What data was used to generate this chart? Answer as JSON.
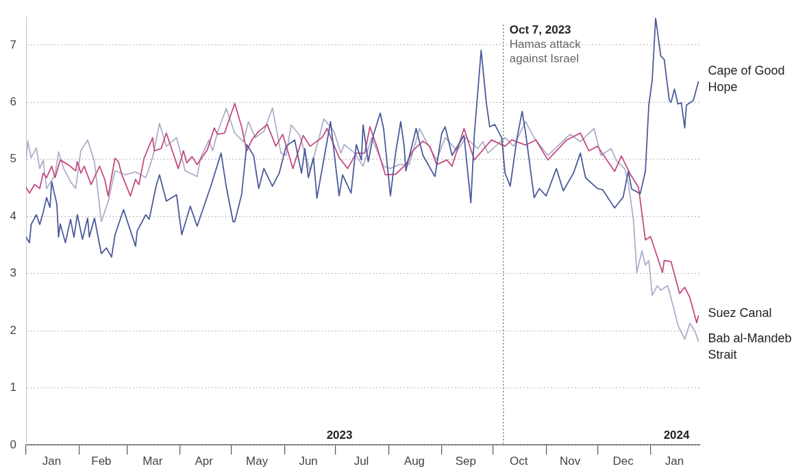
{
  "chart_data": {
    "type": "line",
    "xlim": [
      "2023-01-01",
      "2024-01-30"
    ],
    "xticks": [
      {
        "value": "2023-01-01",
        "label": null
      },
      {
        "value": "2023-01-16",
        "label": "Jan"
      },
      {
        "value": "2023-02-01",
        "label": null
      },
      {
        "value": "2023-02-14",
        "label": "Feb"
      },
      {
        "value": "2023-03-01",
        "label": null
      },
      {
        "value": "2023-03-16",
        "label": "Mar"
      },
      {
        "value": "2023-04-01",
        "label": null
      },
      {
        "value": "2023-04-15",
        "label": "Apr"
      },
      {
        "value": "2023-05-01",
        "label": null
      },
      {
        "value": "2023-05-16",
        "label": "May"
      },
      {
        "value": "2023-06-01",
        "label": null
      },
      {
        "value": "2023-06-15",
        "label": "Jun"
      },
      {
        "value": "2023-07-01",
        "label": null
      },
      {
        "value": "2023-07-16",
        "label": "Jul"
      },
      {
        "value": "2023-08-01",
        "label": null
      },
      {
        "value": "2023-08-16",
        "label": "Aug"
      },
      {
        "value": "2023-09-01",
        "label": null
      },
      {
        "value": "2023-09-15",
        "label": "Sep"
      },
      {
        "value": "2023-10-01",
        "label": null
      },
      {
        "value": "2023-10-16",
        "label": "Oct"
      },
      {
        "value": "2023-11-01",
        "label": null
      },
      {
        "value": "2023-11-15",
        "label": "Nov"
      },
      {
        "value": "2023-12-01",
        "label": null
      },
      {
        "value": "2023-12-16",
        "label": "Dec"
      },
      {
        "value": "2024-01-01",
        "label": null
      },
      {
        "value": "2024-01-15",
        "label": "Jan"
      }
    ],
    "ylim": [
      0,
      7.5
    ],
    "yticks": [
      0,
      1,
      2,
      3,
      4,
      5,
      6,
      7
    ],
    "grid": "y",
    "legend": false,
    "marker": "none",
    "line_style": "solid",
    "ref_lines": [
      {
        "axis": "x",
        "value": "2023-10-07",
        "label": "Oct 7, 2023\nHamas attack\nagainst Israel",
        "color": "#555555",
        "line_style": "dotted"
      }
    ],
    "annotations": [
      "2023",
      "2024"
    ],
    "series": [
      {
        "name": "Cape of Good Hope",
        "color": "#4a5a9a",
        "x": [
          "2023-01-01",
          "2023-01-03",
          "2023-01-04",
          "2023-01-07",
          "2023-01-09",
          "2023-01-11",
          "2023-01-13",
          "2023-01-15",
          "2023-01-16",
          "2023-01-19",
          "2023-01-20",
          "2023-01-21",
          "2023-01-24",
          "2023-01-27",
          "2023-01-29",
          "2023-01-31",
          "2023-02-03",
          "2023-02-06",
          "2023-02-07",
          "2023-02-10",
          "2023-02-14",
          "2023-02-17",
          "2023-02-20",
          "2023-02-22",
          "2023-02-27",
          "2023-03-06",
          "2023-03-07",
          "2023-03-12",
          "2023-03-14",
          "2023-03-18",
          "2023-03-20",
          "2023-03-24",
          "2023-03-30",
          "2023-04-02",
          "2023-04-07",
          "2023-04-11",
          "2023-04-19",
          "2023-04-25",
          "2023-04-28",
          "2023-05-02",
          "2023-05-03",
          "2023-05-07",
          "2023-05-10",
          "2023-05-14",
          "2023-05-17",
          "2023-05-20",
          "2023-05-25",
          "2023-05-29",
          "2023-06-02",
          "2023-06-07",
          "2023-06-11",
          "2023-06-13",
          "2023-06-15",
          "2023-06-18",
          "2023-06-20",
          "2023-06-28",
          "2023-07-03",
          "2023-07-05",
          "2023-07-10",
          "2023-07-13",
          "2023-07-16",
          "2023-07-17",
          "2023-07-20",
          "2023-07-23",
          "2023-07-27",
          "2023-07-29",
          "2023-08-02",
          "2023-08-05",
          "2023-08-08",
          "2023-08-10",
          "2023-08-11",
          "2023-08-17",
          "2023-08-21",
          "2023-08-28",
          "2023-09-01",
          "2023-09-03",
          "2023-09-07",
          "2023-09-14",
          "2023-09-18",
          "2023-09-20",
          "2023-09-24",
          "2023-09-27",
          "2023-09-29",
          "2023-10-02",
          "2023-10-06",
          "2023-10-08",
          "2023-10-11",
          "2023-10-15",
          "2023-10-18",
          "2023-10-20",
          "2023-10-25",
          "2023-10-28",
          "2023-11-01",
          "2023-11-07",
          "2023-11-11",
          "2023-11-17",
          "2023-11-21",
          "2023-11-24",
          "2023-12-01",
          "2023-12-04",
          "2023-12-11",
          "2023-12-16",
          "2023-12-19",
          "2023-12-21",
          "2023-12-26",
          "2023-12-29",
          "2023-12-31",
          "2024-01-02",
          "2024-01-04",
          "2024-01-07",
          "2024-01-09",
          "2024-01-12",
          "2024-01-13",
          "2024-01-15",
          "2024-01-17",
          "2024-01-19",
          "2024-01-21",
          "2024-01-22",
          "2024-01-26",
          "2024-01-29"
        ],
        "values": [
          3.64,
          3.54,
          3.86,
          4.03,
          3.86,
          4.07,
          4.33,
          4.16,
          4.61,
          4.22,
          3.64,
          3.87,
          3.54,
          3.95,
          3.64,
          4.03,
          3.6,
          3.97,
          3.64,
          3.97,
          3.35,
          3.45,
          3.29,
          3.68,
          4.12,
          3.48,
          3.75,
          4.03,
          3.95,
          4.53,
          4.73,
          4.27,
          4.38,
          3.68,
          4.18,
          3.83,
          4.53,
          5.11,
          4.53,
          3.91,
          3.91,
          4.38,
          5.26,
          5.07,
          4.49,
          4.84,
          4.53,
          4.76,
          5.23,
          5.34,
          4.76,
          5.19,
          4.68,
          5.03,
          4.32,
          5.66,
          4.36,
          4.73,
          4.41,
          5.26,
          4.99,
          5.6,
          4.96,
          5.42,
          5.81,
          5.54,
          4.36,
          5.11,
          5.66,
          5.23,
          4.8,
          5.54,
          5.07,
          4.7,
          5.46,
          5.57,
          5.07,
          5.42,
          4.24,
          5.42,
          6.91,
          6.0,
          5.57,
          5.61,
          5.38,
          4.76,
          4.53,
          5.38,
          5.84,
          5.46,
          4.33,
          4.49,
          4.36,
          4.84,
          4.45,
          4.76,
          5.11,
          4.68,
          4.49,
          4.47,
          4.15,
          4.34,
          4.79,
          4.48,
          4.4,
          4.79,
          5.95,
          6.39,
          7.47,
          6.81,
          6.75,
          6.03,
          6.0,
          6.23,
          5.97,
          5.99,
          5.55,
          5.95,
          6.03,
          6.36
        ]
      },
      {
        "name": "Suez Canal",
        "color": "#c44a7f",
        "x": [
          "2023-01-01",
          "2023-01-03",
          "2023-01-06",
          "2023-01-09",
          "2023-01-11",
          "2023-01-13",
          "2023-01-16",
          "2023-01-18",
          "2023-01-21",
          "2023-01-26",
          "2023-01-30",
          "2023-01-31",
          "2023-02-02",
          "2023-02-04",
          "2023-02-08",
          "2023-02-13",
          "2023-02-16",
          "2023-02-18",
          "2023-02-22",
          "2023-02-24",
          "2023-02-26",
          "2023-03-03",
          "2023-03-06",
          "2023-03-08",
          "2023-03-11",
          "2023-03-16",
          "2023-03-17",
          "2023-03-21",
          "2023-03-24",
          "2023-03-31",
          "2023-04-03",
          "2023-04-05",
          "2023-04-08",
          "2023-04-11",
          "2023-04-17",
          "2023-04-21",
          "2023-04-23",
          "2023-04-27",
          "2023-05-03",
          "2023-05-07",
          "2023-05-10",
          "2023-05-13",
          "2023-05-17",
          "2023-05-22",
          "2023-05-27",
          "2023-05-31",
          "2023-06-06",
          "2023-06-12",
          "2023-06-16",
          "2023-06-23",
          "2023-06-26",
          "2023-07-03",
          "2023-07-08",
          "2023-07-13",
          "2023-07-18",
          "2023-07-21",
          "2023-07-25",
          "2023-07-30",
          "2023-08-05",
          "2023-08-11",
          "2023-08-15",
          "2023-08-21",
          "2023-08-25",
          "2023-08-29",
          "2023-09-04",
          "2023-09-07",
          "2023-09-14",
          "2023-09-20",
          "2023-09-30",
          "2023-10-08",
          "2023-10-12",
          "2023-10-20",
          "2023-10-26",
          "2023-11-02",
          "2023-11-13",
          "2023-11-21",
          "2023-11-26",
          "2023-12-01",
          "2023-12-11",
          "2023-12-15",
          "2023-12-20",
          "2023-12-25",
          "2023-12-29",
          "2024-01-01",
          "2024-01-08",
          "2024-01-09",
          "2024-01-13",
          "2024-01-18",
          "2024-01-21",
          "2024-01-24",
          "2024-01-28",
          "2024-01-29"
        ],
        "values": [
          4.51,
          4.41,
          4.56,
          4.49,
          4.76,
          4.68,
          4.88,
          4.68,
          4.99,
          4.9,
          4.8,
          4.96,
          4.76,
          4.88,
          4.56,
          4.88,
          4.65,
          4.36,
          5.02,
          4.96,
          4.73,
          4.36,
          4.65,
          4.56,
          5.02,
          5.38,
          5.15,
          5.19,
          5.46,
          4.84,
          5.15,
          4.94,
          5.05,
          4.91,
          5.17,
          5.55,
          5.44,
          5.46,
          5.98,
          5.57,
          5.15,
          5.34,
          5.49,
          5.61,
          5.23,
          5.44,
          4.84,
          5.42,
          5.23,
          5.38,
          5.54,
          5.03,
          4.84,
          5.11,
          5.11,
          5.57,
          5.23,
          4.73,
          4.74,
          4.91,
          5.15,
          5.32,
          5.23,
          4.91,
          4.99,
          4.88,
          5.54,
          4.99,
          5.34,
          5.23,
          5.34,
          5.25,
          5.34,
          4.99,
          5.34,
          5.46,
          5.15,
          5.23,
          4.79,
          5.06,
          4.75,
          4.51,
          3.59,
          3.65,
          3.02,
          3.23,
          3.21,
          2.65,
          2.76,
          2.58,
          2.14,
          2.26
        ]
      },
      {
        "name": "Bab al-Mandeb Strait",
        "color": "#aeaecb",
        "x": [
          "2023-01-01",
          "2023-01-02",
          "2023-01-04",
          "2023-01-07",
          "2023-01-09",
          "2023-01-11",
          "2023-01-13",
          "2023-01-18",
          "2023-01-20",
          "2023-01-23",
          "2023-01-27",
          "2023-01-30",
          "2023-02-02",
          "2023-02-06",
          "2023-02-10",
          "2023-02-14",
          "2023-02-18",
          "2023-02-22",
          "2023-02-28",
          "2023-03-06",
          "2023-03-12",
          "2023-03-16",
          "2023-03-20",
          "2023-03-24",
          "2023-03-30",
          "2023-04-04",
          "2023-04-11",
          "2023-04-13",
          "2023-04-18",
          "2023-04-20",
          "2023-04-23",
          "2023-04-28",
          "2023-05-03",
          "2023-05-08",
          "2023-05-11",
          "2023-05-15",
          "2023-05-20",
          "2023-05-25",
          "2023-05-30",
          "2023-06-02",
          "2023-06-05",
          "2023-06-10",
          "2023-06-16",
          "2023-06-22",
          "2023-06-24",
          "2023-06-30",
          "2023-07-04",
          "2023-07-06",
          "2023-07-12",
          "2023-07-17",
          "2023-07-22",
          "2023-07-29",
          "2023-08-02",
          "2023-08-07",
          "2023-08-13",
          "2023-08-19",
          "2023-08-23",
          "2023-08-29",
          "2023-09-03",
          "2023-09-10",
          "2023-09-15",
          "2023-09-22",
          "2023-09-25",
          "2023-09-28",
          "2023-10-08",
          "2023-10-13",
          "2023-10-20",
          "2023-10-25",
          "2023-11-02",
          "2023-11-15",
          "2023-11-21",
          "2023-11-29",
          "2023-12-03",
          "2023-12-09",
          "2023-12-12",
          "2023-12-17",
          "2023-12-19",
          "2023-12-22",
          "2023-12-24",
          "2023-12-27",
          "2023-12-29",
          "2023-12-31",
          "2024-01-02",
          "2024-01-05",
          "2024-01-07",
          "2024-01-11",
          "2024-01-14",
          "2024-01-17",
          "2024-01-21",
          "2024-01-24",
          "2024-01-27",
          "2024-01-29"
        ],
        "values": [
          4.99,
          5.32,
          5.03,
          5.2,
          4.84,
          4.99,
          4.49,
          4.73,
          5.13,
          4.84,
          4.61,
          4.49,
          5.15,
          5.34,
          4.96,
          3.91,
          4.26,
          4.8,
          4.73,
          4.78,
          4.68,
          5.03,
          5.63,
          5.23,
          5.38,
          4.8,
          4.7,
          5.03,
          5.34,
          5.15,
          5.48,
          5.89,
          5.46,
          5.31,
          5.66,
          5.38,
          5.49,
          5.9,
          5.11,
          5.07,
          5.6,
          5.42,
          4.8,
          5.46,
          5.71,
          5.49,
          5.11,
          5.26,
          5.11,
          4.88,
          5.38,
          4.88,
          4.84,
          4.91,
          4.91,
          5.54,
          5.31,
          4.99,
          5.38,
          5.15,
          5.38,
          5.19,
          5.31,
          5.11,
          5.38,
          5.23,
          5.66,
          5.38,
          5.07,
          5.44,
          5.31,
          5.54,
          5.07,
          5.19,
          4.98,
          4.83,
          4.59,
          3.95,
          3.02,
          3.4,
          3.15,
          3.23,
          2.62,
          2.79,
          2.71,
          2.79,
          2.46,
          2.1,
          1.85,
          2.13,
          1.99,
          1.82
        ]
      }
    ]
  }
}
